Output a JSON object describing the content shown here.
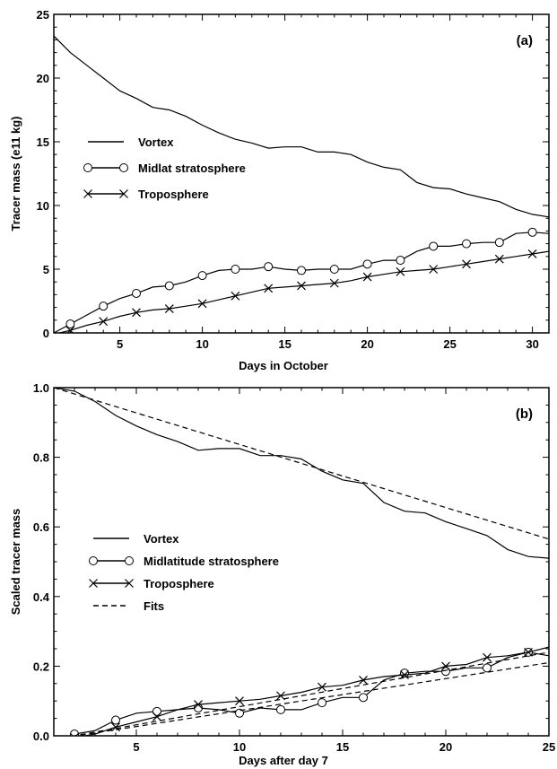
{
  "chart_data": [
    {
      "type": "line",
      "panel_label": "(a)",
      "xlabel": "Days in October",
      "ylabel": "Tracer mass (e11 kg)",
      "xlim": [
        1,
        31
      ],
      "ylim": [
        0,
        25
      ],
      "xticks": [
        5,
        10,
        15,
        20,
        25,
        30
      ],
      "yticks": [
        0,
        5,
        10,
        15,
        20,
        25
      ],
      "legend_position": "center-left",
      "series": [
        {
          "name": "Vortex",
          "marker": "none",
          "dash": "solid",
          "x": [
            1,
            2,
            3,
            4,
            5,
            6,
            7,
            8,
            9,
            10,
            11,
            12,
            13,
            14,
            15,
            16,
            17,
            18,
            19,
            20,
            21,
            22,
            23,
            24,
            25,
            26,
            27,
            28,
            29,
            30,
            31
          ],
          "y": [
            23.3,
            22.0,
            21.0,
            20.0,
            19.0,
            18.4,
            17.7,
            17.5,
            17.0,
            16.3,
            15.7,
            15.2,
            14.9,
            14.5,
            14.6,
            14.6,
            14.2,
            14.2,
            14.0,
            13.4,
            13.0,
            12.8,
            11.8,
            11.4,
            11.3,
            10.9,
            10.6,
            10.3,
            9.7,
            9.3,
            9.1
          ]
        },
        {
          "name": "Midlat stratosphere",
          "marker": "circle",
          "dash": "solid",
          "x": [
            1,
            2,
            3,
            4,
            5,
            6,
            7,
            8,
            9,
            10,
            11,
            12,
            13,
            14,
            15,
            16,
            17,
            18,
            19,
            20,
            21,
            22,
            23,
            24,
            25,
            26,
            27,
            28,
            29,
            30,
            31
          ],
          "y": [
            0.0,
            0.7,
            1.4,
            2.1,
            2.7,
            3.1,
            3.6,
            3.7,
            4.0,
            4.5,
            4.9,
            5.0,
            5.0,
            5.2,
            5.0,
            4.9,
            5.0,
            5.0,
            5.0,
            5.4,
            5.7,
            5.7,
            6.4,
            6.8,
            6.8,
            7.0,
            7.1,
            7.1,
            7.8,
            7.9,
            7.8
          ]
        },
        {
          "name": "Troposphere",
          "marker": "cross",
          "dash": "solid",
          "x": [
            1,
            2,
            3,
            4,
            5,
            6,
            7,
            8,
            9,
            10,
            11,
            12,
            13,
            14,
            15,
            16,
            17,
            18,
            19,
            20,
            21,
            22,
            23,
            24,
            25,
            26,
            27,
            28,
            29,
            30,
            31
          ],
          "y": [
            -0.1,
            0.2,
            0.6,
            0.9,
            1.3,
            1.6,
            1.8,
            1.9,
            2.1,
            2.3,
            2.6,
            2.9,
            3.2,
            3.5,
            3.6,
            3.7,
            3.8,
            3.9,
            4.1,
            4.4,
            4.6,
            4.8,
            4.9,
            5.0,
            5.2,
            5.4,
            5.6,
            5.8,
            6.0,
            6.2,
            6.4
          ]
        }
      ]
    },
    {
      "type": "line",
      "panel_label": "(b)",
      "xlabel": "Days after day 7",
      "ylabel": "Scaled tracer mass",
      "xlim": [
        1,
        25
      ],
      "ylim": [
        0,
        1
      ],
      "xticks": [
        5,
        10,
        15,
        20,
        25
      ],
      "ytick_labels": [
        "0.0",
        "0.2",
        "0.4",
        "0.6",
        "0.8",
        "1.0"
      ],
      "yticks": [
        0,
        0.2,
        0.4,
        0.6,
        0.8,
        1.0
      ],
      "legend_position": "center-left",
      "series": [
        {
          "name": "Vortex",
          "marker": "none",
          "dash": "solid",
          "x": [
            1,
            2,
            3,
            4,
            5,
            6,
            7,
            8,
            9,
            10,
            11,
            12,
            13,
            14,
            15,
            16,
            17,
            18,
            19,
            20,
            21,
            22,
            23,
            24,
            25
          ],
          "y": [
            1.0,
            0.99,
            0.96,
            0.92,
            0.89,
            0.865,
            0.845,
            0.82,
            0.825,
            0.825,
            0.805,
            0.805,
            0.795,
            0.76,
            0.735,
            0.725,
            0.67,
            0.645,
            0.64,
            0.615,
            0.595,
            0.575,
            0.535,
            0.515,
            0.51
          ]
        },
        {
          "name": "Midlatitude stratosphere",
          "marker": "circle",
          "dash": "solid",
          "x": [
            1,
            2,
            3,
            4,
            5,
            6,
            7,
            8,
            9,
            10,
            11,
            12,
            13,
            14,
            15,
            16,
            17,
            18,
            19,
            20,
            21,
            22,
            23,
            24,
            25
          ],
          "y": [
            -0.02,
            0.005,
            0.015,
            0.045,
            0.065,
            0.07,
            0.075,
            0.08,
            0.075,
            0.065,
            0.08,
            0.075,
            0.075,
            0.095,
            0.11,
            0.11,
            0.16,
            0.18,
            0.185,
            0.185,
            0.195,
            0.195,
            0.225,
            0.24,
            0.23
          ]
        },
        {
          "name": "Troposphere",
          "marker": "cross",
          "dash": "solid",
          "x": [
            1,
            2,
            3,
            4,
            5,
            6,
            7,
            8,
            9,
            10,
            11,
            12,
            13,
            14,
            15,
            16,
            17,
            18,
            19,
            20,
            21,
            22,
            23,
            24,
            25
          ],
          "y": [
            -0.01,
            -0.005,
            0.005,
            0.025,
            0.04,
            0.055,
            0.075,
            0.09,
            0.095,
            0.1,
            0.105,
            0.115,
            0.125,
            0.14,
            0.145,
            0.16,
            0.17,
            0.175,
            0.18,
            0.2,
            0.205,
            0.225,
            0.23,
            0.24,
            0.255
          ]
        },
        {
          "name": "Fits",
          "marker": "none",
          "dash": "dashed",
          "x": [
            1,
            25
          ],
          "y": [
            1.0,
            0.565
          ]
        },
        {
          "name": "Fits",
          "marker": "none",
          "dash": "dashed",
          "show_in_legend": false,
          "x": [
            1,
            25
          ],
          "y": [
            -0.01,
            0.21
          ]
        },
        {
          "name": "Fits",
          "marker": "none",
          "dash": "dashed",
          "show_in_legend": false,
          "x": [
            1,
            25
          ],
          "y": [
            -0.01,
            0.24
          ]
        }
      ]
    }
  ]
}
